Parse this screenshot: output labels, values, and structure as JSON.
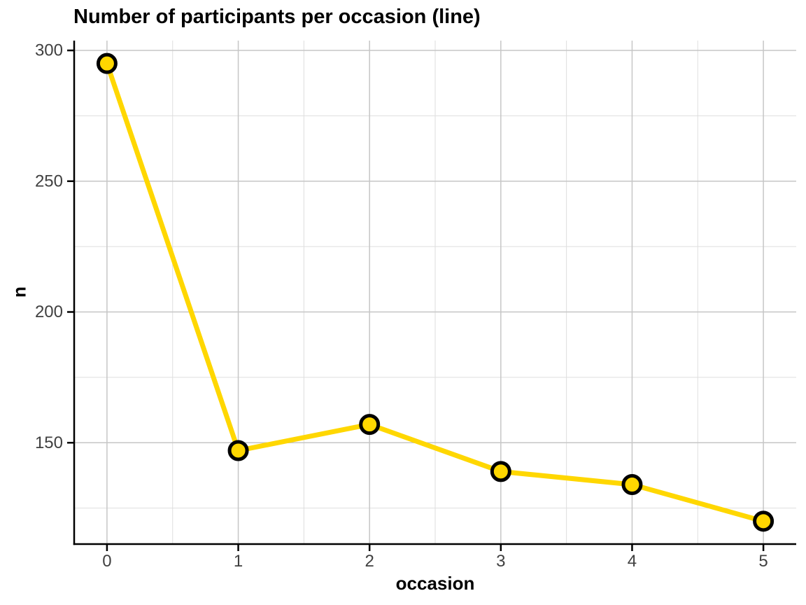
{
  "chart_data": {
    "type": "line",
    "title": "Number of participants per occasion (line)",
    "xlabel": "occasion",
    "ylabel": "n",
    "x": [
      0,
      1,
      2,
      3,
      4,
      5
    ],
    "values": [
      295,
      147,
      157,
      139,
      134,
      120
    ],
    "series_name": "participants",
    "x_tick_labels": [
      "0",
      "1",
      "2",
      "3",
      "4",
      "5"
    ],
    "x_ticks": [
      0,
      1,
      2,
      3,
      4,
      5
    ],
    "y_tick_labels": [
      "150",
      "200",
      "250",
      "300"
    ],
    "y_ticks": [
      150,
      200,
      250,
      300
    ],
    "y_minor_ticks": [
      125,
      175,
      225,
      275
    ],
    "x_minor_ticks": [
      0.5,
      1.5,
      2.5,
      3.5,
      4.5
    ],
    "xlim": [
      -0.25,
      5.25
    ],
    "ylim": [
      111.25,
      303.75
    ],
    "grid": "major-and-minor",
    "legend": false,
    "colors": {
      "line": "#FFD700",
      "marker_fill": "#FFD700",
      "marker_stroke": "#000000",
      "axis_line": "#000000",
      "grid_major": "#c6c6c6",
      "grid_minor": "#dedede",
      "tick_text": "#404040",
      "title_text": "#000000",
      "background": "#ffffff"
    }
  }
}
